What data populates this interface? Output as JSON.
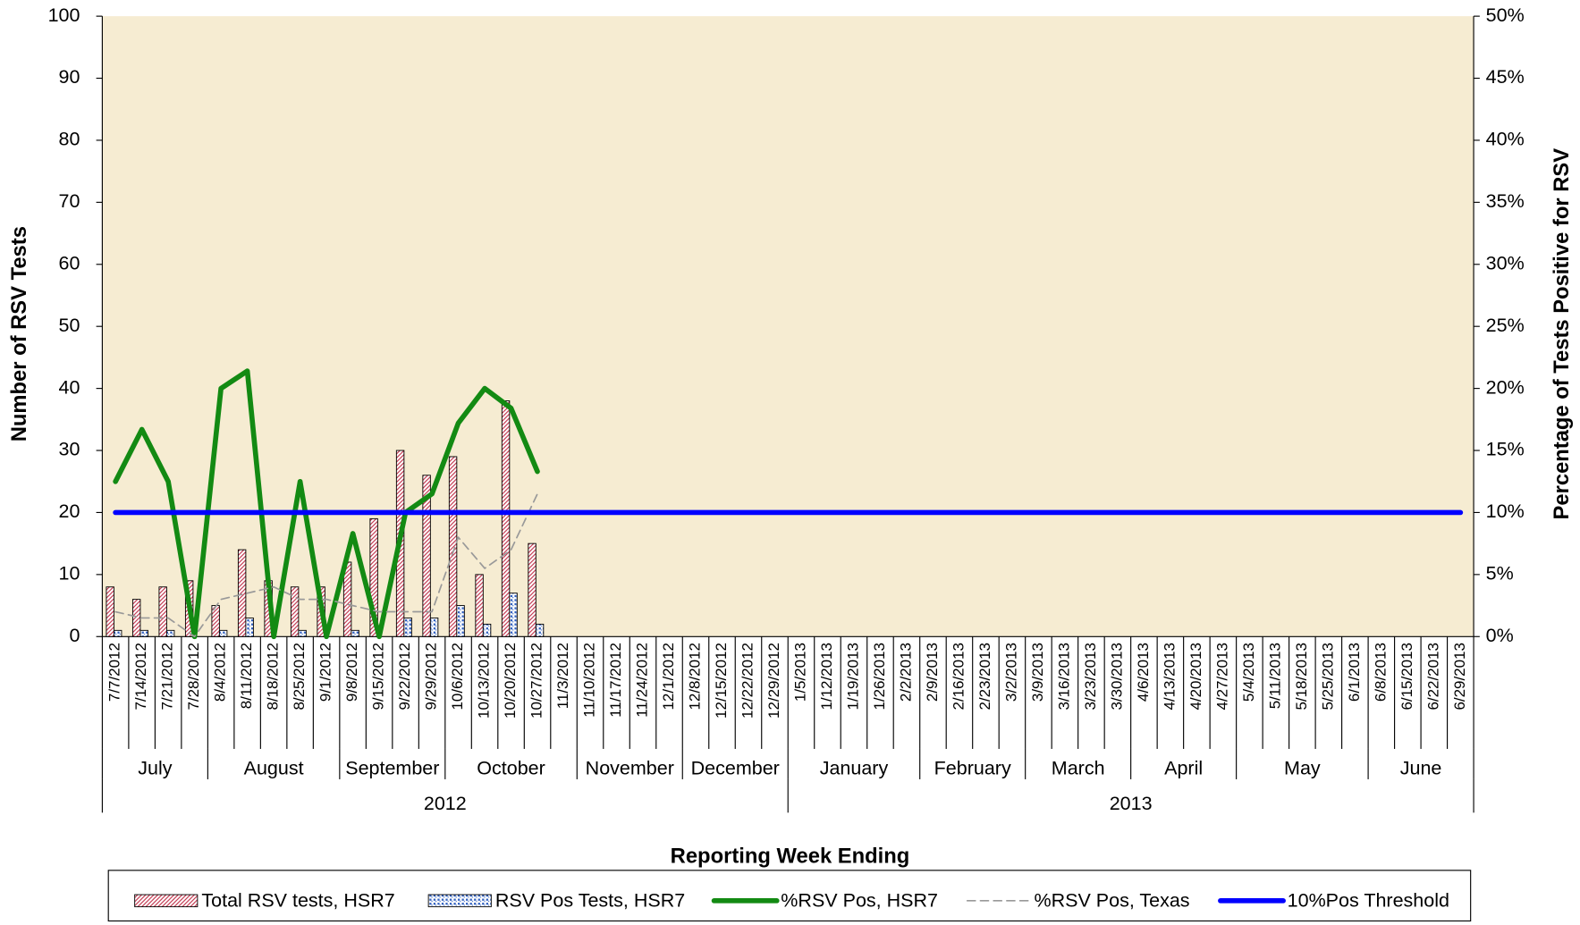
{
  "chart_data": {
    "type": "combo",
    "x_label": "Reporting Week Ending",
    "y_label": "Number of RSV Tests",
    "y2_label": "Percentage  of Tests Positive for RSV",
    "categories": [
      "7/7/2012",
      "7/14/2012",
      "7/21/2012",
      "7/28/2012",
      "8/4/2012",
      "8/11/2012",
      "8/18/2012",
      "8/25/2012",
      "9/1/2012",
      "9/8/2012",
      "9/15/2012",
      "9/22/2012",
      "9/29/2012",
      "10/6/2012",
      "10/13/2012",
      "10/20/2012",
      "10/27/2012",
      "11/3/2012",
      "11/10/2012",
      "11/17/2012",
      "11/24/2012",
      "12/1/2012",
      "12/8/2012",
      "12/15/2012",
      "12/22/2012",
      "12/29/2012",
      "1/5/2013",
      "1/12/2013",
      "1/19/2013",
      "1/26/2013",
      "2/2/2013",
      "2/9/2013",
      "2/16/2013",
      "2/23/2013",
      "3/2/2013",
      "3/9/2013",
      "3/16/2013",
      "3/23/2013",
      "3/30/2013",
      "4/6/2013",
      "4/13/2013",
      "4/20/2013",
      "4/27/2013",
      "5/4/2013",
      "5/11/2013",
      "5/18/2013",
      "5/25/2013",
      "6/1/2013",
      "6/8/2013",
      "6/15/2013",
      "6/22/2013",
      "6/29/2013"
    ],
    "months": [
      {
        "label": "July",
        "span": 4
      },
      {
        "label": "August",
        "span": 5
      },
      {
        "label": "September",
        "span": 4
      },
      {
        "label": "October",
        "span": 5
      },
      {
        "label": "November",
        "span": 4
      },
      {
        "label": "December",
        "span": 4
      },
      {
        "label": "January",
        "span": 5
      },
      {
        "label": "February",
        "span": 4
      },
      {
        "label": "March",
        "span": 4
      },
      {
        "label": "April",
        "span": 4
      },
      {
        "label": "May",
        "span": 5
      },
      {
        "label": "June",
        "span": 4
      }
    ],
    "years": [
      {
        "label": "2012",
        "span": 26
      },
      {
        "label": "2013",
        "span": 26
      }
    ],
    "series": [
      {
        "name": "Total RSV tests, HSR7",
        "kind": "bar",
        "fill": "hatch",
        "color": "#c03048",
        "values": [
          8,
          6,
          8,
          9,
          5,
          14,
          9,
          8,
          8,
          12,
          19,
          30,
          26,
          29,
          10,
          38,
          15,
          null,
          null,
          null,
          null,
          null,
          null,
          null,
          null,
          null,
          null,
          null,
          null,
          null,
          null,
          null,
          null,
          null,
          null,
          null,
          null,
          null,
          null,
          null,
          null,
          null,
          null,
          null,
          null,
          null,
          null,
          null,
          null,
          null,
          null,
          null
        ]
      },
      {
        "name": "RSV Pos Tests, HSR7",
        "kind": "bar",
        "fill": "dots",
        "color": "#3060c0",
        "values": [
          1,
          1,
          1,
          0,
          1,
          3,
          0,
          1,
          0,
          1,
          0,
          3,
          3,
          5,
          2,
          7,
          2,
          null,
          null,
          null,
          null,
          null,
          null,
          null,
          null,
          null,
          null,
          null,
          null,
          null,
          null,
          null,
          null,
          null,
          null,
          null,
          null,
          null,
          null,
          null,
          null,
          null,
          null,
          null,
          null,
          null,
          null,
          null,
          null,
          null,
          null,
          null
        ]
      },
      {
        "name": "%RSV Pos, HSR7",
        "kind": "line",
        "axis": "y2",
        "color": "#138a13",
        "width": 5,
        "values": [
          12.5,
          16.7,
          12.5,
          0,
          20,
          21.4,
          0,
          12.5,
          0,
          8.3,
          0,
          10,
          11.5,
          17.2,
          20,
          18.4,
          13.3,
          null,
          null,
          null,
          null,
          null,
          null,
          null,
          null,
          null,
          null,
          null,
          null,
          null,
          null,
          null,
          null,
          null,
          null,
          null,
          null,
          null,
          null,
          null,
          null,
          null,
          null,
          null,
          null,
          null,
          null,
          null,
          null,
          null,
          null,
          null
        ]
      },
      {
        "name": "%RSV Pos, Texas",
        "kind": "line",
        "axis": "y2",
        "color": "#999999",
        "width": 1.5,
        "dash": true,
        "values": [
          2,
          1.5,
          1.5,
          0,
          3,
          3.5,
          4,
          3,
          3,
          2.5,
          2,
          2,
          2,
          8,
          5.5,
          7,
          11.5,
          null,
          null,
          null,
          null,
          null,
          null,
          null,
          null,
          null,
          null,
          null,
          null,
          null,
          null,
          null,
          null,
          null,
          null,
          null,
          null,
          null,
          null,
          null,
          null,
          null,
          null,
          null,
          null,
          null,
          null,
          null,
          null,
          null,
          null,
          null
        ]
      },
      {
        "name": "10%Pos Threshold",
        "kind": "line",
        "axis": "y2",
        "color": "#0000ff",
        "width": 5,
        "values": [
          10,
          10,
          10,
          10,
          10,
          10,
          10,
          10,
          10,
          10,
          10,
          10,
          10,
          10,
          10,
          10,
          10,
          10,
          10,
          10,
          10,
          10,
          10,
          10,
          10,
          10,
          10,
          10,
          10,
          10,
          10,
          10,
          10,
          10,
          10,
          10,
          10,
          10,
          10,
          10,
          10,
          10,
          10,
          10,
          10,
          10,
          10,
          10,
          10,
          10,
          10,
          10
        ]
      }
    ],
    "ylim": [
      0,
      100
    ],
    "yticks": [
      0,
      10,
      20,
      30,
      40,
      50,
      60,
      70,
      80,
      90,
      100
    ],
    "y2lim": [
      0,
      50
    ],
    "y2ticks": [
      {
        "value": 0,
        "label": "0%"
      },
      {
        "value": 5,
        "label": "5%"
      },
      {
        "value": 10,
        "label": "10%"
      },
      {
        "value": 15,
        "label": "15%"
      },
      {
        "value": 20,
        "label": "20%"
      },
      {
        "value": 25,
        "label": "25%"
      },
      {
        "value": 30,
        "label": "30%"
      },
      {
        "value": 35,
        "label": "35%"
      },
      {
        "value": 40,
        "label": "40%"
      },
      {
        "value": 45,
        "label": "45%"
      },
      {
        "value": 50,
        "label": "50%"
      }
    ],
    "legend": "bottom"
  }
}
